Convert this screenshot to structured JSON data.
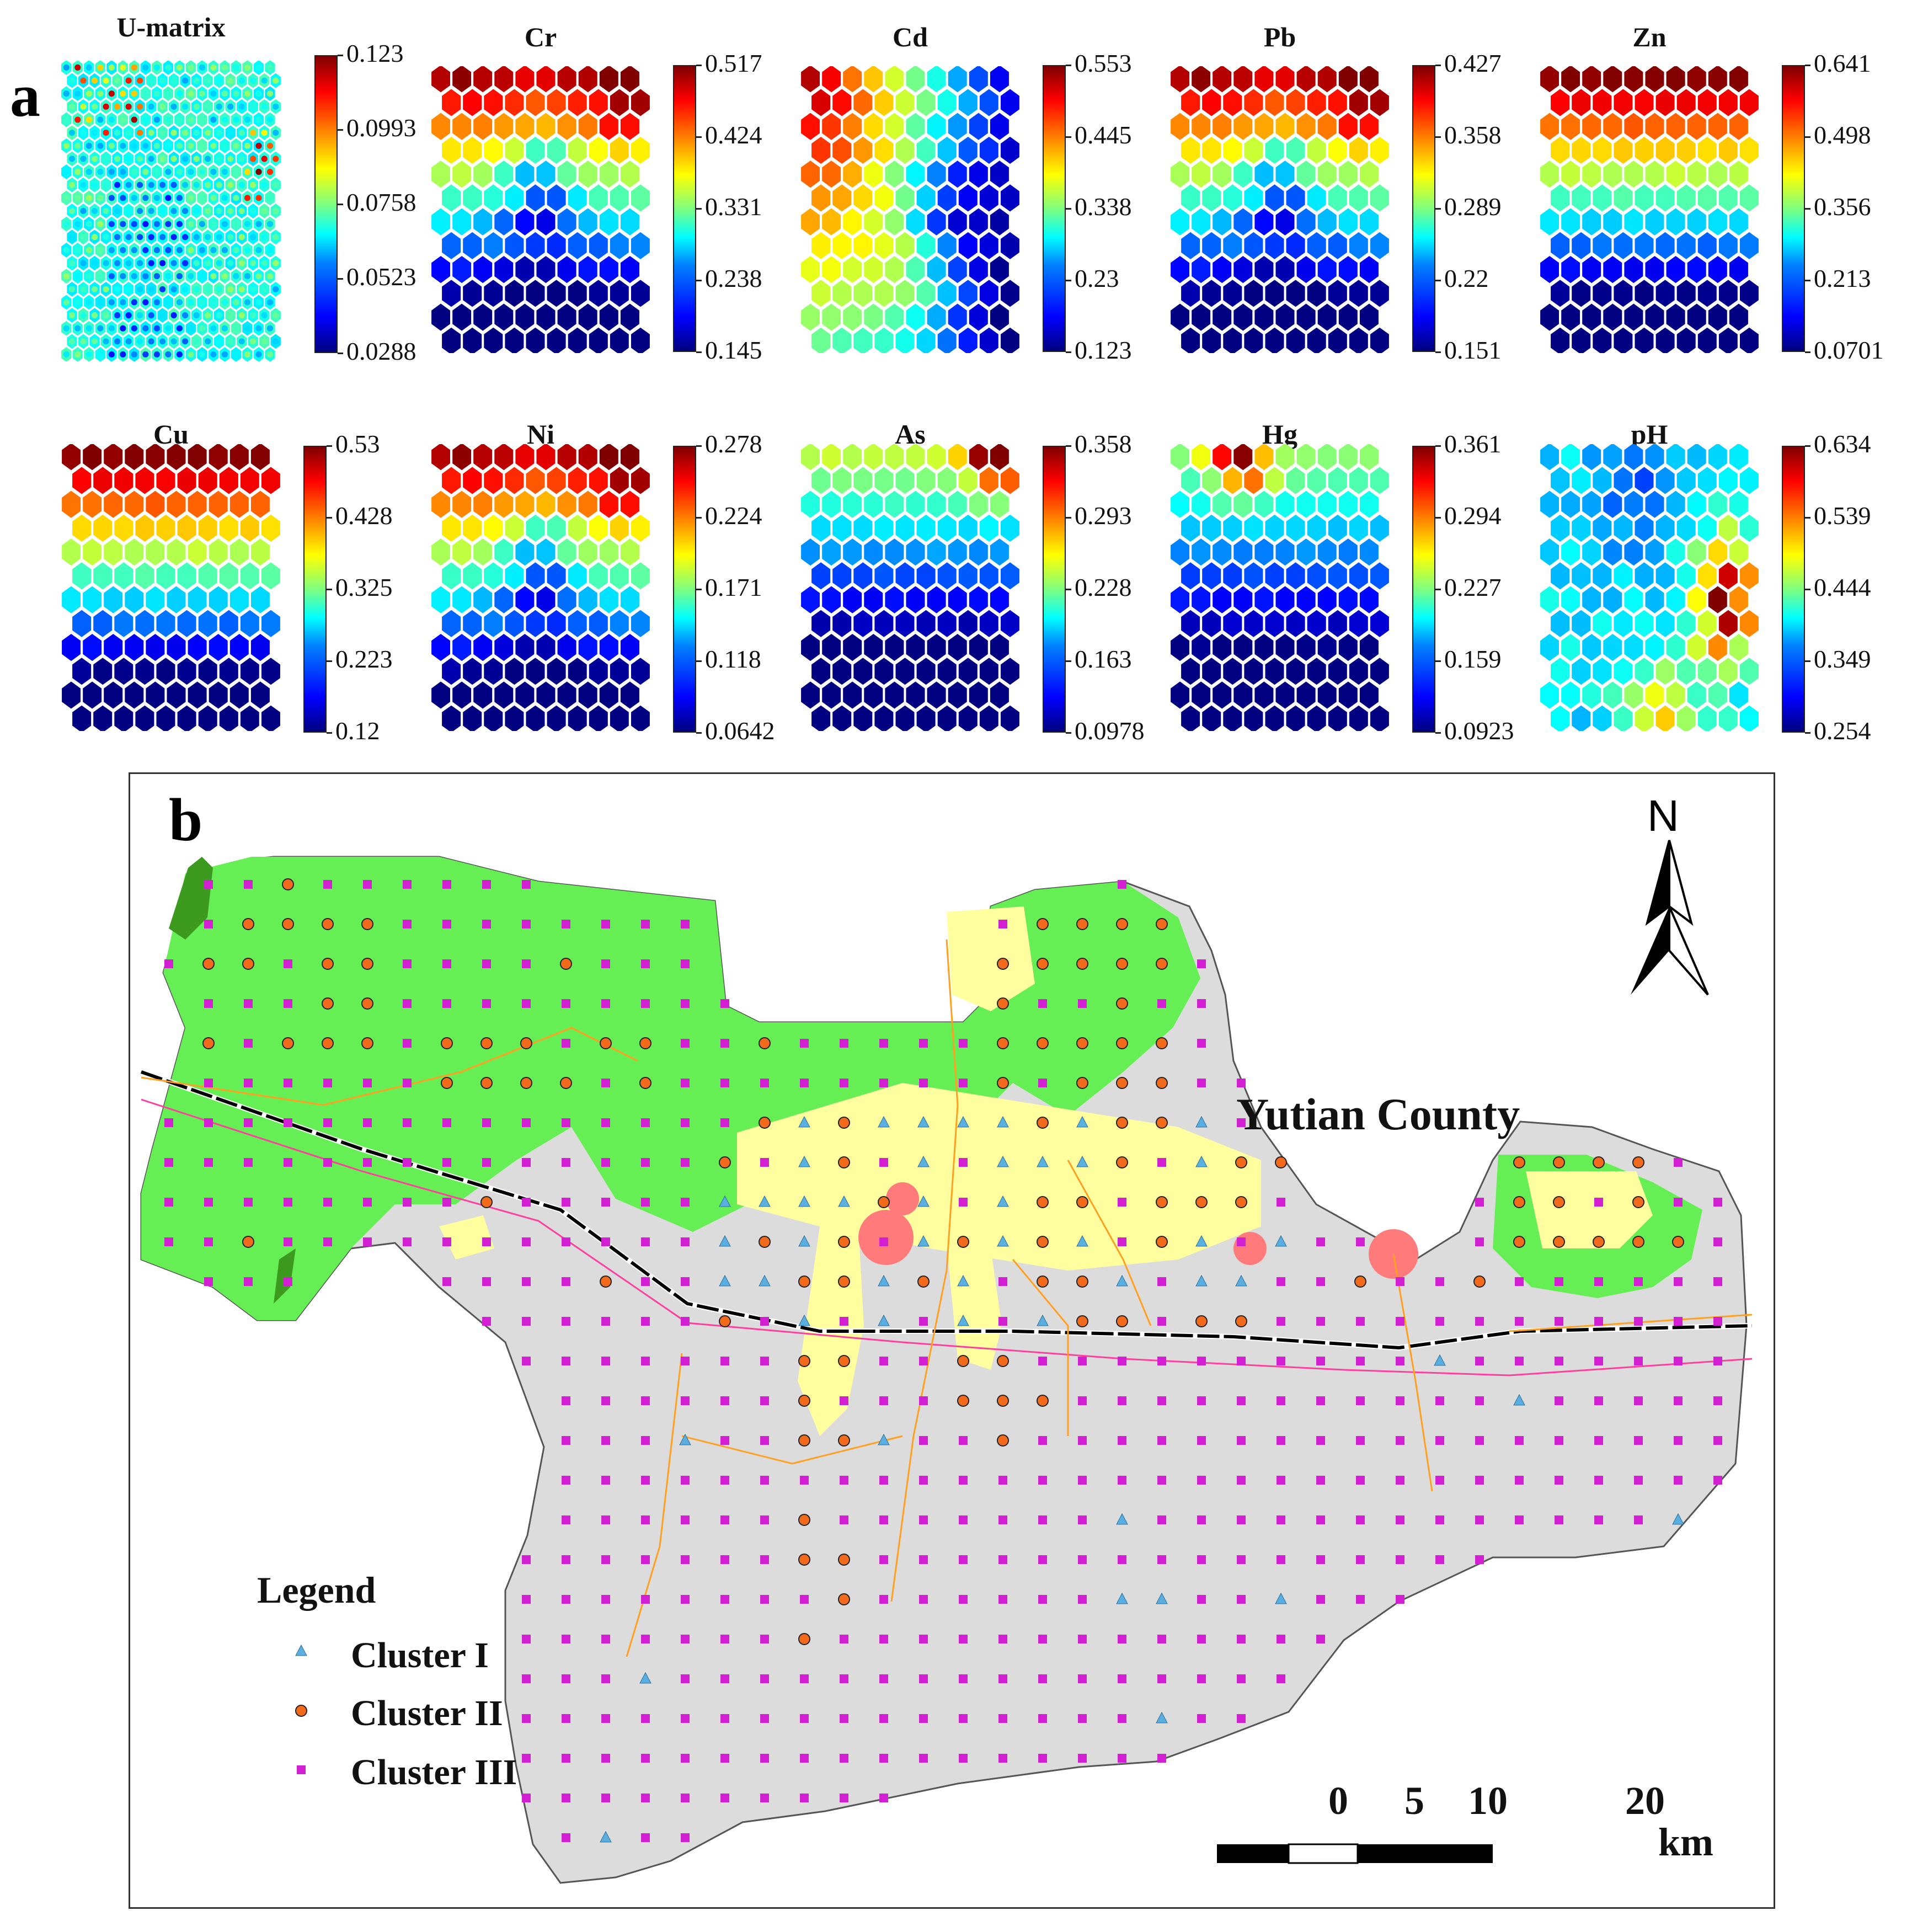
{
  "panel_a": {
    "letter": "a",
    "maps": [
      {
        "title": "U-matrix",
        "ticks": [
          "0.123",
          "0.0993",
          "0.0758",
          "0.0523",
          "0.0288"
        ],
        "pattern": "umatrix"
      },
      {
        "title": "Cr",
        "ticks": [
          "0.517",
          "0.424",
          "0.331",
          "0.238",
          "0.145"
        ],
        "pattern": "top_high"
      },
      {
        "title": "Cd",
        "ticks": [
          "0.553",
          "0.445",
          "0.338",
          "0.23",
          "0.123"
        ],
        "pattern": "top_left_high"
      },
      {
        "title": "Pb",
        "ticks": [
          "0.427",
          "0.358",
          "0.289",
          "0.22",
          "0.151"
        ],
        "pattern": "top_high"
      },
      {
        "title": "Zn",
        "ticks": [
          "0.641",
          "0.498",
          "0.356",
          "0.213",
          "0.0701"
        ],
        "pattern": "top_high_smooth"
      },
      {
        "title": "Cu",
        "ticks": [
          "0.53",
          "0.428",
          "0.325",
          "0.223",
          "0.12"
        ],
        "pattern": "top_high_smooth"
      },
      {
        "title": "Ni",
        "ticks": [
          "0.278",
          "0.224",
          "0.171",
          "0.118",
          "0.0642"
        ],
        "pattern": "top_high"
      },
      {
        "title": "As",
        "ticks": [
          "0.358",
          "0.293",
          "0.228",
          "0.163",
          "0.0978"
        ],
        "pattern": "top_right_high"
      },
      {
        "title": "Hg",
        "ticks": [
          "0.361",
          "0.294",
          "0.227",
          "0.159",
          "0.0923"
        ],
        "pattern": "top_center_high"
      },
      {
        "title": "pH",
        "ticks": [
          "0.634",
          "0.539",
          "0.444",
          "0.349",
          "0.254"
        ],
        "pattern": "right_high"
      }
    ]
  },
  "panel_b": {
    "letter": "b",
    "county_label": "Yutian County",
    "north_label": "N",
    "legend": {
      "title": "Legend",
      "items": [
        {
          "label": "Cluster I",
          "symbol": "triangle",
          "color": "#5aaee0"
        },
        {
          "label": "Cluster II",
          "symbol": "circle",
          "color": "#f26b1d"
        },
        {
          "label": "Cluster III",
          "symbol": "square",
          "color": "#d21fd2"
        }
      ]
    },
    "scale_bar": {
      "labels": [
        "0",
        "5",
        "10",
        "20"
      ],
      "unit": "km"
    },
    "colors": {
      "land_green": "#66ee55",
      "dark_green": "#3c9b1e",
      "gray_area": "#dcdcdc",
      "built_yellow": "#ffffa0",
      "urban_red": "#ff7b7b",
      "railway": "#000000",
      "pink_line": "#ff3fa0",
      "orange_road": "#ffa020"
    }
  }
}
